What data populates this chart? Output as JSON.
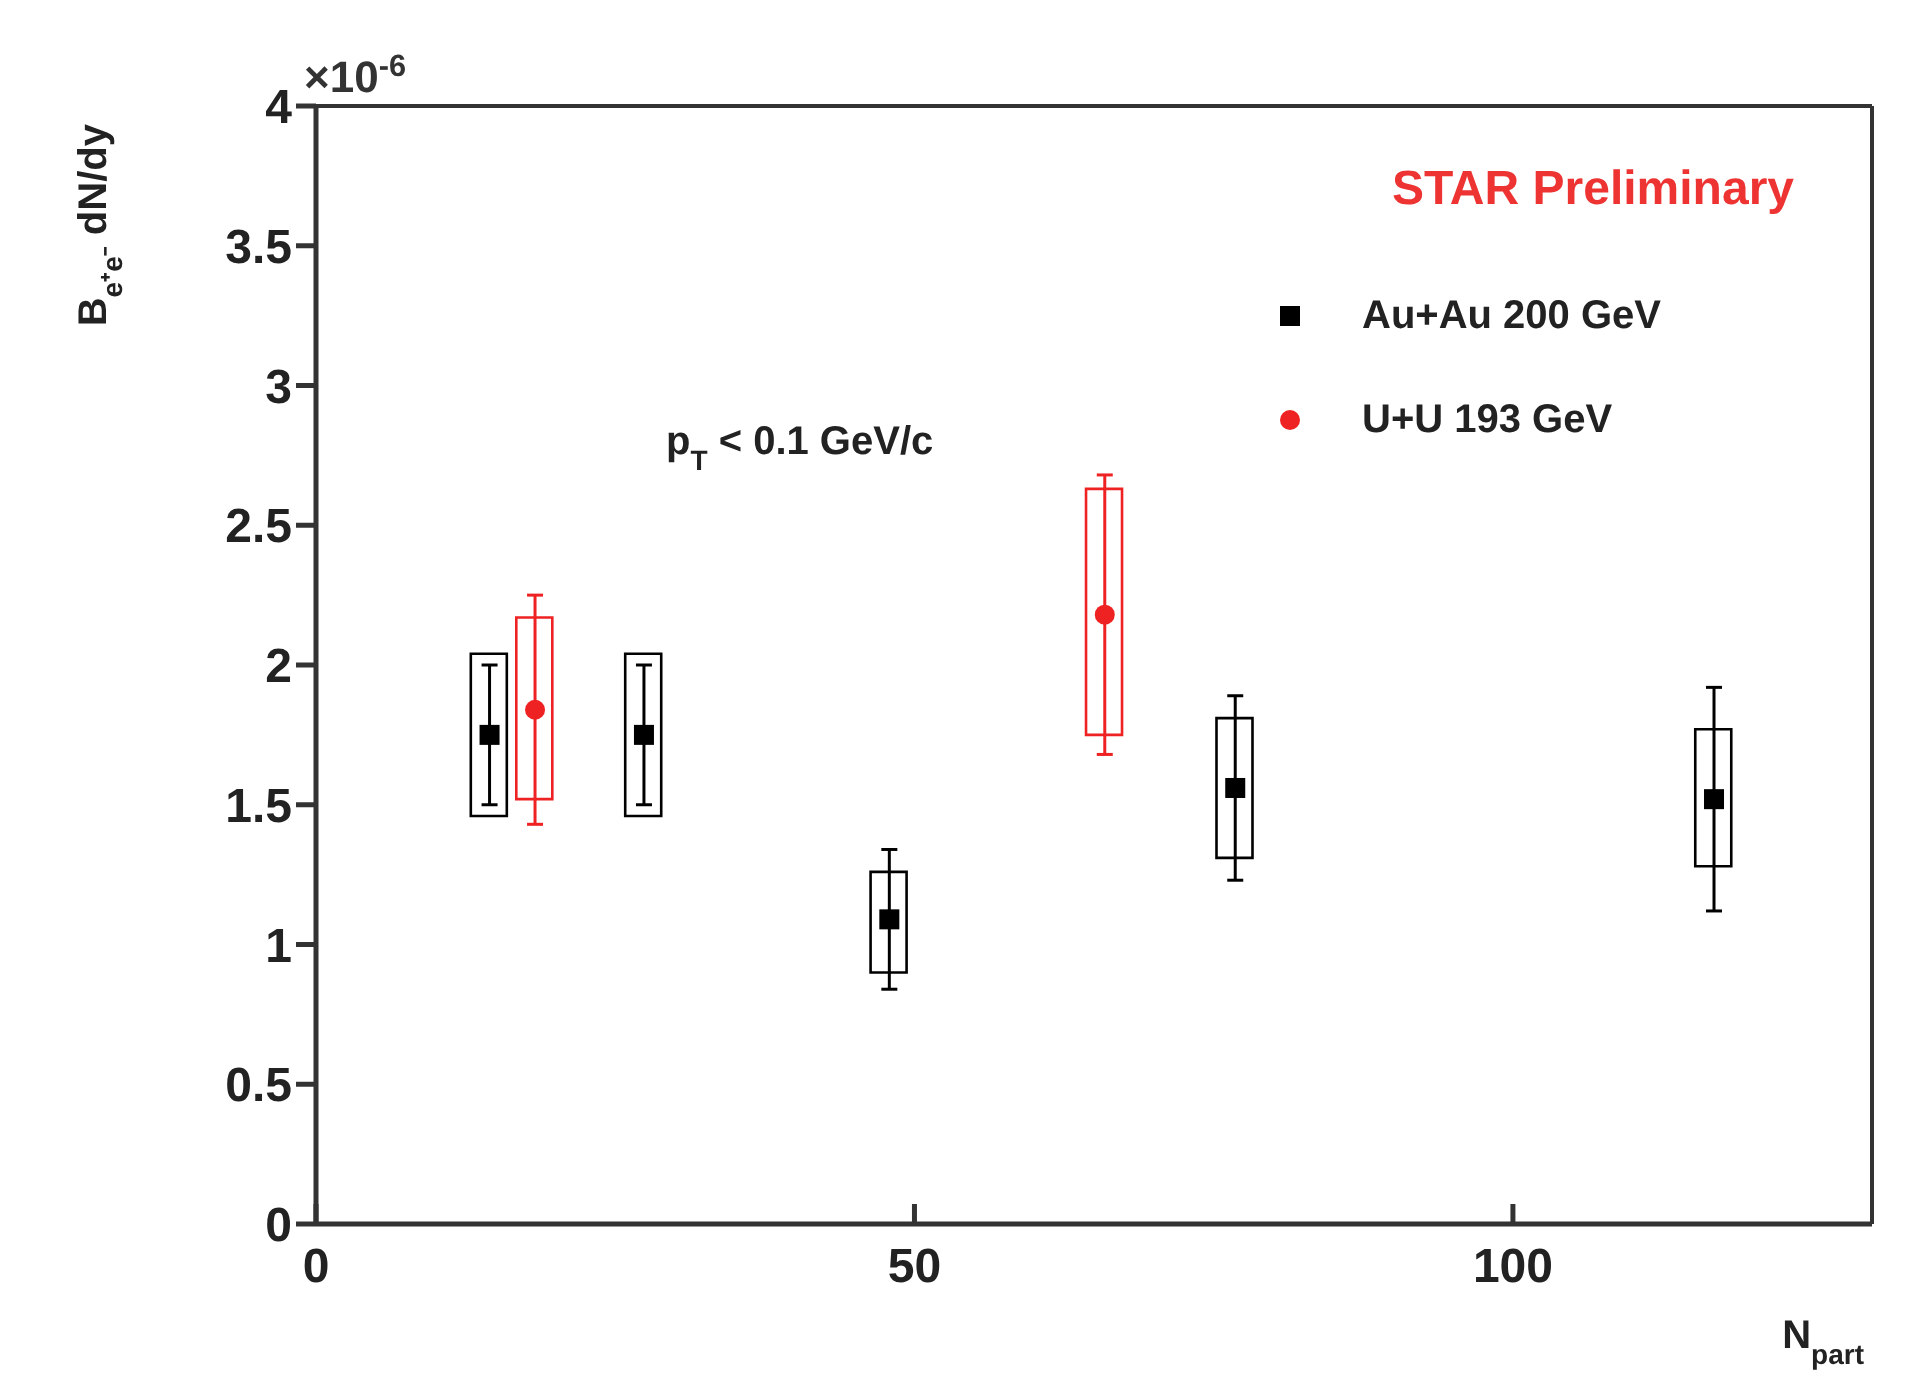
{
  "chart_data": {
    "type": "scatter",
    "xlabel": "N$_{part}$",
    "ylabel": "B$_{e⁺e⁻}$ dN/dy",
    "annotations": [
      "×10$^{-6}$",
      "STAR Preliminary",
      "p$_{T}$ < 0.1 GeV/c"
    ],
    "xlim": [
      0,
      130
    ],
    "xticks": [
      0,
      50,
      100
    ],
    "ylim": [
      0,
      4
    ],
    "yticks": [
      0,
      0.5,
      1,
      1.5,
      2,
      2.5,
      3,
      3.5,
      4
    ],
    "legend": "top right",
    "grid": false,
    "series": [
      {
        "name": "Au+Au 200 GeV",
        "marker": "square",
        "color": "#000000",
        "x": [
          14.5,
          27.4,
          47.9,
          76.8,
          116.8
        ],
        "values": [
          1.75,
          1.75,
          1.09,
          1.56,
          1.52
        ],
        "errors": [
          0.25,
          0.25,
          0.25,
          0.33,
          0.4
        ]
      },
      {
        "name": "U+U 193 GeV",
        "marker": "circle",
        "color": "#ee2222",
        "x": [
          18.3,
          65.9
        ],
        "values": [
          1.84,
          2.18
        ],
        "errors": [
          0.41,
          0.5
        ]
      },
      {
        "type": "bar",
        "color": "#000000",
        "x": [
          14.5,
          27.4,
          47.9,
          76.8,
          116.8
        ],
        "base": [
          1.46,
          1.46,
          0.9,
          1.31,
          1.28
        ],
        "values": [
          0.58,
          0.58,
          0.36,
          0.5,
          0.49
        ]
      },
      {
        "type": "bar",
        "color": "#ee2222",
        "x": [
          18.3,
          65.9
        ],
        "base": [
          1.52,
          1.75
        ],
        "values": [
          0.65,
          0.88
        ]
      }
    ]
  }
}
